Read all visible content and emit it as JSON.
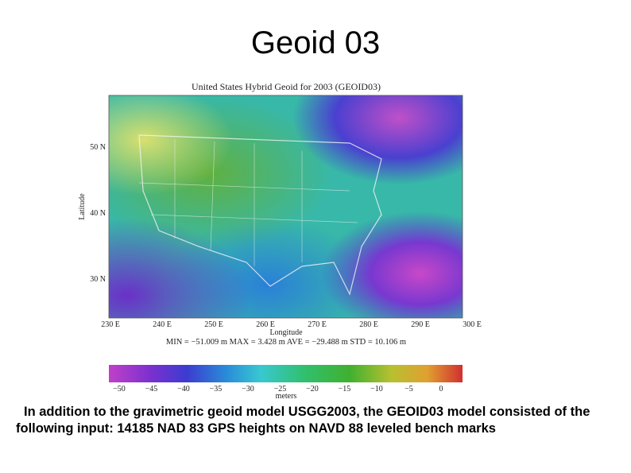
{
  "title": "Geoid 03",
  "figure": {
    "title": "United States Hybrid Geoid for 2003 (GEOID03)",
    "y_label": "Latitude",
    "lat_ticks": [
      "50 N",
      "40 N",
      "30 N"
    ],
    "lon_ticks": [
      "230 E",
      "240 E",
      "250 E",
      "260 E",
      "270 E",
      "280 E",
      "290 E",
      "300 E"
    ],
    "x_label": "Longitude",
    "stats": "MIN = −51.009 m   MAX = 3.428 m   AVE = −29.488 m   STD = 10.106 m",
    "colorbar_ticks": [
      "−50",
      "−45",
      "−40",
      "−35",
      "−30",
      "−25",
      "−20",
      "−15",
      "−10",
      "−5",
      "0"
    ],
    "colorbar_label": "meters"
  },
  "caption": "In addition to the gravimetric geoid model USGG2003, the GEOID03 model consisted of the following input: 14185 NAD 83 GPS heights on NAVD 88 leveled bench marks"
}
